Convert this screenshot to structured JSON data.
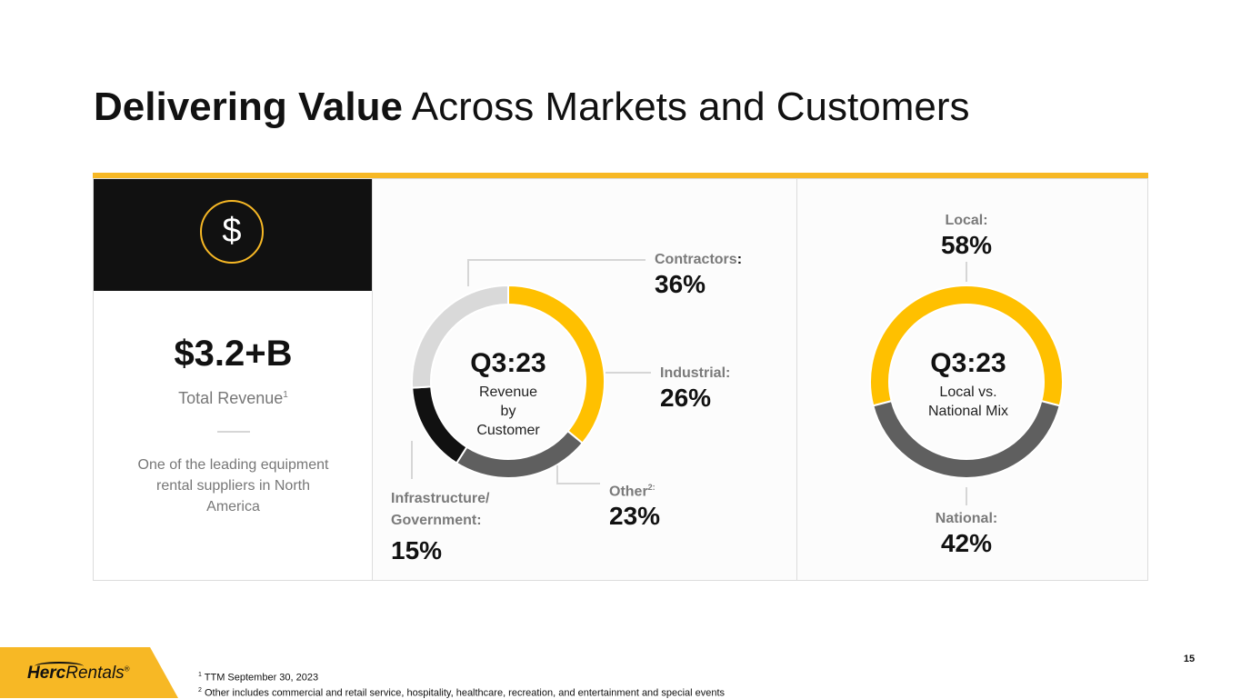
{
  "title": {
    "bold": "Delivering Value",
    "regular": " Across Markets and Customers"
  },
  "colors": {
    "accent": "#f7b825",
    "black": "#111111",
    "gray_dark": "#5f5f5f",
    "gray_light": "#d8d8d8"
  },
  "revenue_card": {
    "icon": "dollar-icon",
    "icon_glyph": "$",
    "value": "$3.2+B",
    "label": "Total Revenue",
    "label_sup": "1",
    "description": "One of the leading equipment rental suppliers in North America"
  },
  "chart_data": [
    {
      "type": "pie",
      "style": "donut",
      "center_title": "Q3:23",
      "center_subtitle": "Revenue by Customer",
      "slices": [
        {
          "label": "Contractors",
          "label_suffix": ":",
          "display": "36%",
          "value": 36,
          "color": "#ffc000"
        },
        {
          "label": "Other",
          "label_sup": "2:",
          "display": "23%",
          "value": 23,
          "color": "#5f5f5f"
        },
        {
          "label": "Infrastructure/ Government:",
          "display": "15%",
          "value": 15,
          "color": "#111111"
        },
        {
          "label": "Industrial:",
          "display": "26%",
          "value": 26,
          "color": "#d9d9d9"
        }
      ]
    },
    {
      "type": "pie",
      "style": "donut",
      "center_title": "Q3:23",
      "center_subtitle": "Local vs. National Mix",
      "slices": [
        {
          "label": "Local:",
          "display": "58%",
          "value": 58,
          "color": "#ffc000"
        },
        {
          "label": "National:",
          "display": "42%",
          "value": 42,
          "color": "#5f5f5f"
        }
      ]
    }
  ],
  "footer": {
    "logo_bold": "Herc",
    "logo_regular": "Rentals",
    "logo_mark": "®",
    "footnote_1_num": "1",
    "footnote_1": " TTM September 30, 2023",
    "footnote_2_num": "2",
    "footnote_2": " Other includes commercial and retail service, hospitality, healthcare, recreation, and entertainment  and special events",
    "page_number": "15"
  }
}
